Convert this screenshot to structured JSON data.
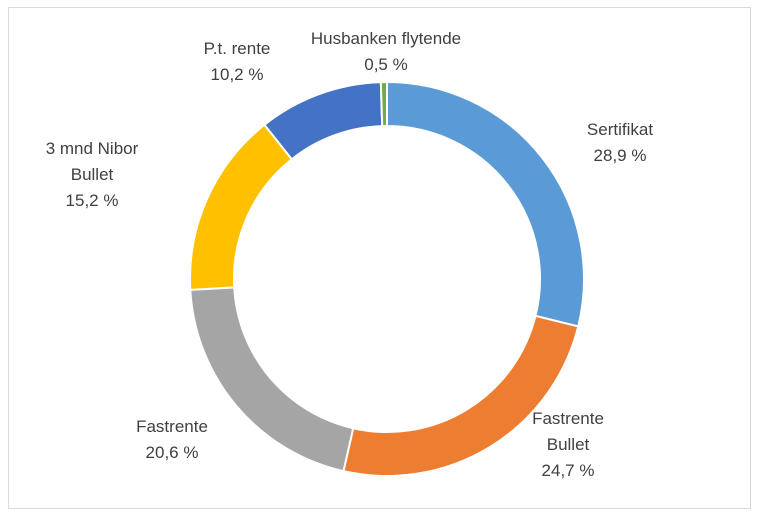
{
  "chart_data": {
    "type": "donut",
    "categories": [
      "Sertifikat",
      "Fastrente Bullet",
      "Fastrente",
      "3 mnd Nibor Bullet",
      "P.t. rente",
      "Husbanken flytende"
    ],
    "values": [
      28.9,
      24.7,
      20.6,
      15.2,
      10.2,
      0.5
    ],
    "value_labels": [
      "28,9 %",
      "24,7 %",
      "20,6 %",
      "15,2 %",
      "10,2 %",
      "0,5 %"
    ],
    "colors": [
      "#5b9bd5",
      "#ed7d31",
      "#a5a5a5",
      "#ffc000",
      "#4472c4",
      "#70ad47"
    ]
  }
}
